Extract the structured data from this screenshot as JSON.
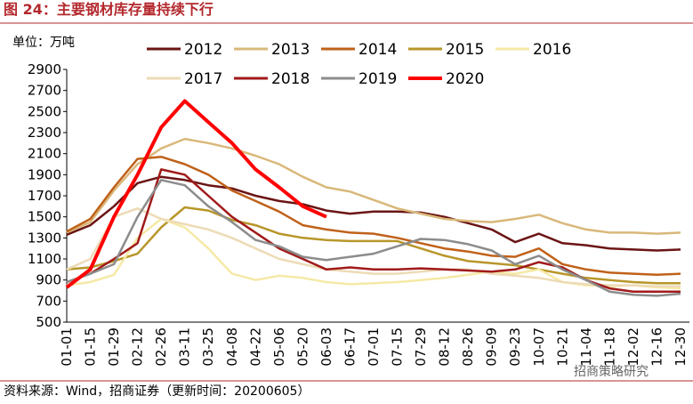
{
  "header": {
    "title": "图 24：主要钢材库存量持续下行"
  },
  "chart_data": {
    "type": "line",
    "y_unit": "单位：万吨",
    "categories": [
      "01-01",
      "01-15",
      "01-29",
      "02-12",
      "02-26",
      "03-11",
      "03-25",
      "04-08",
      "04-22",
      "05-06",
      "05-20",
      "06-03",
      "06-17",
      "07-01",
      "07-15",
      "07-29",
      "08-12",
      "08-26",
      "09-09",
      "09-23",
      "10-07",
      "10-21",
      "11-04",
      "11-18",
      "12-02",
      "12-16",
      "12-30"
    ],
    "series": [
      {
        "name": "2012",
        "color": "#6b1414",
        "values": [
          1330,
          1420,
          1600,
          1820,
          1880,
          1850,
          1800,
          1770,
          1700,
          1650,
          1620,
          1560,
          1530,
          1550,
          1550,
          1540,
          1500,
          1440,
          1380,
          1260,
          1340,
          1250,
          1230,
          1200,
          1190,
          1180,
          1190
        ]
      },
      {
        "name": "2013",
        "color": "#d9b87a",
        "values": [
          1350,
          1450,
          1750,
          2000,
          2150,
          2240,
          2200,
          2150,
          2080,
          2000,
          1880,
          1780,
          1740,
          1660,
          1580,
          1530,
          1480,
          1460,
          1450,
          1480,
          1520,
          1440,
          1380,
          1350,
          1350,
          1340,
          1350
        ]
      },
      {
        "name": "2014",
        "color": "#c0611a",
        "values": [
          1360,
          1480,
          1780,
          2050,
          2070,
          2000,
          1900,
          1750,
          1650,
          1550,
          1420,
          1380,
          1350,
          1340,
          1300,
          1250,
          1200,
          1170,
          1130,
          1120,
          1200,
          1050,
          1000,
          970,
          960,
          950,
          960
        ]
      },
      {
        "name": "2015",
        "color": "#b8962a",
        "values": [
          1000,
          1020,
          1080,
          1150,
          1400,
          1590,
          1560,
          1470,
          1420,
          1340,
          1300,
          1280,
          1270,
          1270,
          1270,
          1200,
          1130,
          1080,
          1060,
          1040,
          1000,
          960,
          920,
          900,
          880,
          870,
          870
        ]
      },
      {
        "name": "2016",
        "color": "#f5e9a6",
        "values": [
          850,
          880,
          950,
          1300,
          1480,
          1400,
          1200,
          960,
          900,
          940,
          920,
          880,
          860,
          870,
          880,
          900,
          920,
          950,
          980,
          960,
          1000,
          880,
          850,
          840,
          850,
          830,
          820
        ]
      },
      {
        "name": "2017",
        "color": "#eddbb6",
        "values": [
          1000,
          1100,
          1500,
          1580,
          1480,
          1430,
          1380,
          1300,
          1200,
          1100,
          1050,
          1000,
          980,
          960,
          960,
          980,
          1000,
          1000,
          960,
          940,
          920,
          880,
          860,
          850,
          850,
          840,
          840
        ]
      },
      {
        "name": "2018",
        "color": "#a11a1a",
        "values": [
          880,
          960,
          1100,
          1250,
          1950,
          1900,
          1700,
          1500,
          1350,
          1200,
          1100,
          1000,
          1020,
          1000,
          1000,
          1010,
          1000,
          990,
          980,
          1000,
          1070,
          1020,
          900,
          820,
          790,
          790,
          790
        ]
      },
      {
        "name": "2019",
        "color": "#8c8c8c",
        "values": [
          880,
          960,
          1050,
          1500,
          1850,
          1800,
          1600,
          1450,
          1280,
          1220,
          1120,
          1090,
          1120,
          1150,
          1220,
          1290,
          1280,
          1240,
          1180,
          1050,
          1130,
          1000,
          900,
          790,
          760,
          750,
          770
        ]
      },
      {
        "name": "2020",
        "color": "#ff0000",
        "values": [
          830,
          1000,
          1500,
          1900,
          2350,
          2600,
          2400,
          2200,
          1950,
          1780,
          1600,
          1500,
          null,
          null,
          null,
          null,
          null,
          null,
          null,
          null,
          null,
          null,
          null,
          null,
          null,
          null,
          null
        ]
      }
    ],
    "ylim": [
      500,
      2900
    ],
    "yticks": [
      500,
      700,
      900,
      1100,
      1300,
      1500,
      1700,
      1900,
      2100,
      2300,
      2500,
      2700,
      2900
    ],
    "grid": false
  },
  "footer": {
    "source": "资料来源：Wind，招商证券（更新时间：20200605）",
    "watermark": "招商策略研究"
  }
}
